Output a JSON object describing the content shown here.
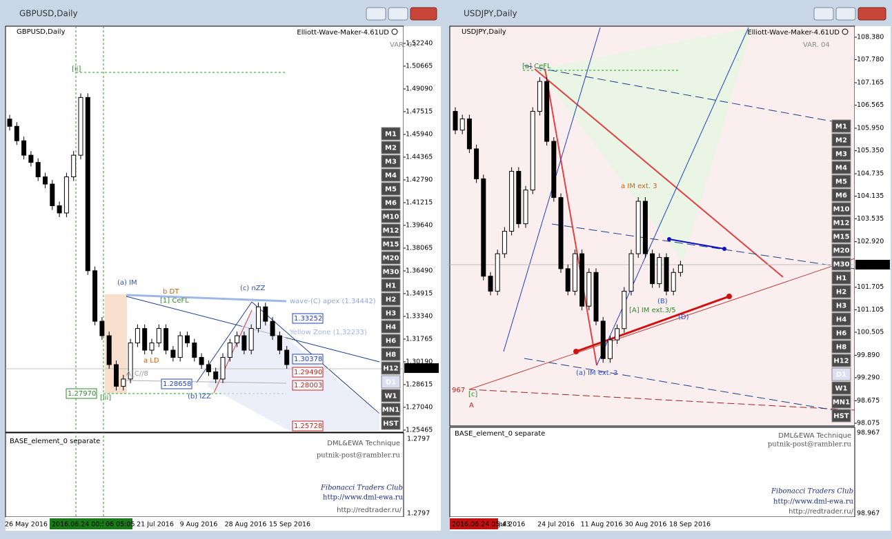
{
  "windows": [
    {
      "title": "GBPUSD,Daily",
      "symbol_label": "GBPUSD,Daily",
      "indicator": "Elliott-Wave-Maker-4.61UD",
      "version": "VAR. 04",
      "price_ticks": [
        {
          "value": 1.5224,
          "label": "1.52240"
        },
        {
          "value": 1.50665,
          "label": "1.50665"
        },
        {
          "value": 1.4909,
          "label": "1.49090"
        },
        {
          "value": 1.47515,
          "label": "1.47515"
        },
        {
          "value": 1.4594,
          "label": "1.45940"
        },
        {
          "value": 1.44365,
          "label": "1.44365"
        },
        {
          "value": 1.4279,
          "label": "1.42790"
        },
        {
          "value": 1.41215,
          "label": "1.41215"
        },
        {
          "value": 1.3964,
          "label": "1.39640"
        },
        {
          "value": 1.38065,
          "label": "1.38065"
        },
        {
          "value": 1.3649,
          "label": "1.36490"
        },
        {
          "value": 1.34915,
          "label": "1.34915"
        },
        {
          "value": 1.3334,
          "label": "1.33340"
        },
        {
          "value": 1.31765,
          "label": "1.31765"
        },
        {
          "value": 1.3019,
          "label": "1.30190"
        },
        {
          "value": 1.28615,
          "label": "1.28615"
        },
        {
          "value": 1.2704,
          "label": "1.27040"
        },
        {
          "value": 1.25465,
          "label": "1.25465"
        }
      ],
      "current_price": {
        "value": 1.29757,
        "label": "1.29757"
      },
      "closes": [
        1.465,
        1.455,
        1.445,
        1.44,
        1.43,
        1.425,
        1.41,
        1.405,
        1.43,
        1.445,
        1.485,
        1.365,
        1.33,
        1.32,
        1.3,
        1.285,
        1.29,
        1.315,
        1.325,
        1.31,
        1.315,
        1.325,
        1.31,
        1.305,
        1.32,
        1.315,
        1.305,
        1.3,
        1.295,
        1.29,
        1.305,
        1.315,
        1.32,
        1.31,
        1.325,
        1.34,
        1.33,
        1.32,
        1.31,
        1.3
      ],
      "dates": [
        "26 May 2016",
        "2016.06.24 00:53",
        "06 05:05",
        "21 Jul 2016",
        "9 Aug 2016",
        "28 Aug 2016",
        "15 Sep 2016"
      ],
      "timeframes": [
        "M1",
        "M2",
        "M3",
        "M4",
        "M5",
        "M6",
        "M10",
        "M12",
        "M15",
        "M20",
        "M30",
        "H1",
        "H2",
        "H3",
        "H4",
        "H6",
        "H8",
        "H12",
        "D1",
        "W1",
        "MN1",
        "HST"
      ],
      "annotations": [
        "[ii]",
        "(a) IM",
        "b DT",
        "(c) nZZ",
        "wave-(C) apex (1.34442)",
        "[1] CeFL",
        "Yellow Zone (1.32233)",
        "a LD",
        "(b) IZZ",
        "[iii]",
        "A_C//8",
        "1.33252",
        "1.30378",
        "1.29490",
        "1.28658",
        "1.28003",
        "1.25728",
        "1.27970"
      ],
      "lower_pane": {
        "label": "BASE_element_0 separate",
        "brand": "DML&EWA Technique",
        "email": "putnik-post@rambler.ru",
        "club": "Fibonacci Traders Club",
        "site": "http://www.dml-ewa.ru",
        "site2": "http://redtrader.ru/",
        "axis_top": "1.2797",
        "axis_bottom": "1.2797"
      }
    },
    {
      "title": "USDJPY,Daily",
      "symbol_label": "USDJPY,Daily",
      "indicator": "Elliott-Wave-Maker-4.61UD",
      "version": "VAR. 04",
      "price_ticks": [
        {
          "value": 108.38,
          "label": "108.380"
        },
        {
          "value": 107.78,
          "label": "107.780"
        },
        107.165,
        106.565,
        {
          "value": 105.95,
          "label": "105.950"
        },
        {
          "value": 105.35,
          "label": "105.350"
        },
        104.735,
        104.135,
        103.535,
        {
          "value": 102.92,
          "label": "102.920"
        },
        101.705,
        101.105,
        100.505,
        {
          "value": 99.89,
          "label": "99.890"
        },
        {
          "value": 99.29,
          "label": "99.290"
        },
        98.675,
        98.075
      ],
      "current_price": 102.308,
      "closes": [
        105.9,
        106.2,
        105.4,
        104.6,
        102.0,
        101.6,
        102.6,
        103.2,
        104.8,
        103.4,
        104.3,
        106.4,
        107.2,
        105.6,
        104.1,
        102.2,
        101.6,
        102.6,
        101.2,
        102.1,
        100.8,
        99.8,
        100.3,
        100.6,
        101.6,
        102.6,
        104.0,
        102.6,
        101.8,
        102.5,
        101.6,
        102.1,
        102.3
      ],
      "dates": [
        "2016.06.24 05:43",
        "Jul 2016",
        "24 Jul 2016",
        "11 Aug 2016",
        "30 Aug 2016",
        "18 Sep 2016"
      ],
      "timeframes": [
        "M1",
        "M2",
        "M3",
        "M4",
        "M5",
        "M6",
        "M10",
        "M12",
        "M15",
        "M20",
        "M30",
        "H1",
        "H2",
        "H3",
        "H4",
        "H6",
        "H8",
        "H12",
        "D1",
        "W1",
        "MN1",
        "HST"
      ],
      "annotations": [
        "[a] CeFL",
        "a IM ext. 3",
        "(a) IM ext. 3",
        "[A] IM ext.3/5",
        "(B)",
        "(D)",
        "967",
        "[c]",
        "A"
      ],
      "lower_pane": {
        "label": "BASE_element_0 separate",
        "brand": "DML&EWA Technique",
        "email": "putnik-post@rambler.ru",
        "club": "Fibonacci Traders Club",
        "site": "http://www.dml-ewa.ru",
        "site2": "http://redtrader.ru/",
        "axis_top": "98.967",
        "axis_bottom": "98.967"
      }
    }
  ]
}
